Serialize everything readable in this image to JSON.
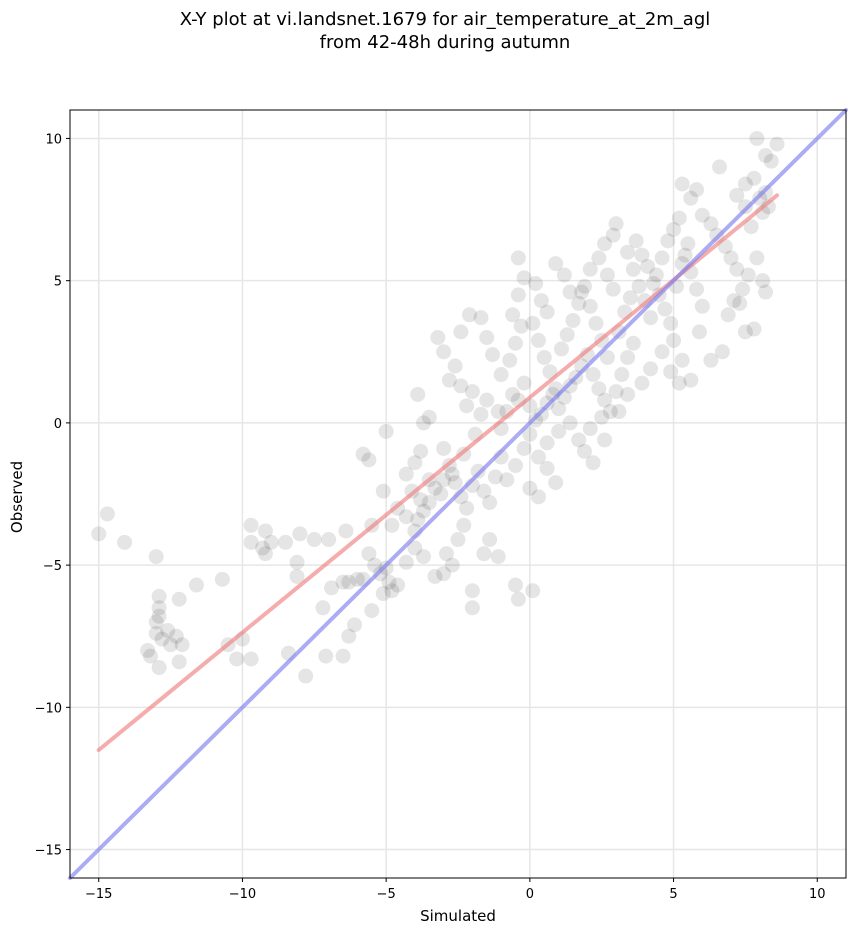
{
  "chart_data": {
    "type": "scatter",
    "title": "X-Y plot at vi.landsnet.1679 for air_temperature_at_2m_agl",
    "subtitle": "from 42-48h during autumn",
    "xlabel": "Simulated",
    "ylabel": "Observed",
    "xlim": [
      -16,
      11
    ],
    "ylim": [
      -16,
      11
    ],
    "xticks": [
      -15,
      -10,
      -5,
      0,
      5,
      10
    ],
    "yticks": [
      -15,
      -10,
      -5,
      0,
      5,
      10
    ],
    "xtick_labels": [
      "−15",
      "−10",
      "−5",
      "0",
      "5",
      "10"
    ],
    "ytick_labels": [
      "−15",
      "−10",
      "−5",
      "0",
      "5",
      "10"
    ],
    "grid": true,
    "colors": {
      "points": "#000000",
      "regression": "#f08080",
      "identity": "#8080f0"
    },
    "series": [
      {
        "kind": "points",
        "points": [
          [
            -15.0,
            -3.9
          ],
          [
            -14.7,
            -3.2
          ],
          [
            -14.1,
            -4.2
          ],
          [
            -13.0,
            -4.7
          ],
          [
            -12.9,
            -6.1
          ],
          [
            -12.9,
            -6.5
          ],
          [
            -12.9,
            -6.8
          ],
          [
            -13.0,
            -7.0
          ],
          [
            -13.0,
            -7.4
          ],
          [
            -12.8,
            -7.6
          ],
          [
            -12.6,
            -7.3
          ],
          [
            -12.5,
            -7.8
          ],
          [
            -13.3,
            -8.0
          ],
          [
            -13.2,
            -8.2
          ],
          [
            -12.9,
            -8.6
          ],
          [
            -12.3,
            -7.5
          ],
          [
            -12.1,
            -7.8
          ],
          [
            -12.2,
            -8.4
          ],
          [
            -11.6,
            -5.7
          ],
          [
            -12.2,
            -6.2
          ],
          [
            -10.7,
            -5.5
          ],
          [
            -10.5,
            -7.8
          ],
          [
            -10.2,
            -8.3
          ],
          [
            -9.7,
            -8.3
          ],
          [
            -10.0,
            -7.6
          ],
          [
            -9.7,
            -3.6
          ],
          [
            -9.7,
            -4.2
          ],
          [
            -9.3,
            -4.4
          ],
          [
            -9.2,
            -4.6
          ],
          [
            -9.0,
            -4.2
          ],
          [
            -8.5,
            -4.2
          ],
          [
            -9.2,
            -3.8
          ],
          [
            -8.1,
            -4.9
          ],
          [
            -8.1,
            -5.4
          ],
          [
            -7.5,
            -4.1
          ],
          [
            -7.0,
            -4.1
          ],
          [
            -8.0,
            -3.9
          ],
          [
            -8.4,
            -8.1
          ],
          [
            -7.8,
            -8.9
          ],
          [
            -7.1,
            -8.2
          ],
          [
            -6.5,
            -8.2
          ],
          [
            -7.2,
            -6.5
          ],
          [
            -6.9,
            -5.8
          ],
          [
            -6.5,
            -5.6
          ],
          [
            -6.3,
            -5.6
          ],
          [
            -6.1,
            -7.1
          ],
          [
            -6.3,
            -7.5
          ],
          [
            -6.4,
            -3.8
          ],
          [
            -6.0,
            -5.5
          ],
          [
            -5.8,
            -5.5
          ],
          [
            -5.5,
            -6.6
          ],
          [
            -5.5,
            -3.6
          ],
          [
            -5.8,
            -1.1
          ],
          [
            -5.6,
            -1.3
          ],
          [
            -5.1,
            -2.4
          ],
          [
            -5.0,
            -0.3
          ],
          [
            -5.6,
            -4.6
          ],
          [
            -5.4,
            -5.0
          ],
          [
            -5.2,
            -5.3
          ],
          [
            -5.0,
            -5.1
          ],
          [
            -4.9,
            -5.6
          ],
          [
            -4.8,
            -5.9
          ],
          [
            -4.6,
            -5.7
          ],
          [
            -4.3,
            -4.9
          ],
          [
            -4.0,
            -4.4
          ],
          [
            -3.7,
            -4.7
          ],
          [
            -5.1,
            -6.0
          ],
          [
            -4.8,
            -3.6
          ],
          [
            -4.6,
            -3.0
          ],
          [
            -4.3,
            -3.3
          ],
          [
            -4.0,
            -3.8
          ],
          [
            -3.9,
            -3.4
          ],
          [
            -3.7,
            -3.1
          ],
          [
            -3.5,
            -2.8
          ],
          [
            -3.3,
            -2.3
          ],
          [
            -3.0,
            -2.0
          ],
          [
            -4.3,
            -1.8
          ],
          [
            -4.1,
            -2.4
          ],
          [
            -4.0,
            -1.4
          ],
          [
            -3.8,
            -1.0
          ],
          [
            -3.7,
            0.0
          ],
          [
            -3.5,
            0.2
          ],
          [
            -3.9,
            1.0
          ],
          [
            -3.2,
            3.0
          ],
          [
            -3.0,
            2.5
          ],
          [
            -2.8,
            1.5
          ],
          [
            -2.6,
            2.0
          ],
          [
            -2.4,
            1.3
          ],
          [
            -2.2,
            0.6
          ],
          [
            -2.4,
            3.2
          ],
          [
            -2.1,
            3.8
          ],
          [
            -1.7,
            3.7
          ],
          [
            -1.5,
            3.0
          ],
          [
            -1.3,
            2.4
          ],
          [
            -3.0,
            -0.9
          ],
          [
            -2.8,
            -1.5
          ],
          [
            -2.6,
            -2.1
          ],
          [
            -2.4,
            -2.6
          ],
          [
            -2.2,
            -3.0
          ],
          [
            -2.0,
            -2.2
          ],
          [
            -1.8,
            -1.7
          ],
          [
            -1.6,
            -2.4
          ],
          [
            -1.4,
            -2.8
          ],
          [
            -1.2,
            -1.9
          ],
          [
            -1.0,
            -1.2
          ],
          [
            -3.3,
            -5.4
          ],
          [
            -3.0,
            -5.3
          ],
          [
            -2.7,
            -5.0
          ],
          [
            -2.9,
            -4.6
          ],
          [
            -2.5,
            -4.1
          ],
          [
            -2.3,
            -3.6
          ],
          [
            -2.0,
            -6.5
          ],
          [
            -2.0,
            -5.9
          ],
          [
            -1.6,
            -4.6
          ],
          [
            -1.4,
            -4.1
          ],
          [
            -1.1,
            -4.7
          ],
          [
            -0.5,
            -5.7
          ],
          [
            -0.4,
            -6.2
          ],
          [
            0.1,
            -5.9
          ],
          [
            -1.0,
            -0.2
          ],
          [
            -0.8,
            0.4
          ],
          [
            -0.6,
            1.0
          ],
          [
            -0.4,
            0.8
          ],
          [
            -0.2,
            1.4
          ],
          [
            0.0,
            0.6
          ],
          [
            -1.0,
            1.7
          ],
          [
            -0.7,
            2.2
          ],
          [
            -0.5,
            2.8
          ],
          [
            -0.3,
            3.4
          ],
          [
            -0.6,
            3.8
          ],
          [
            -0.4,
            4.5
          ],
          [
            -0.2,
            5.1
          ],
          [
            -0.4,
            5.8
          ],
          [
            0.2,
            4.9
          ],
          [
            0.4,
            4.3
          ],
          [
            0.1,
            3.5
          ],
          [
            0.3,
            2.9
          ],
          [
            0.5,
            2.3
          ],
          [
            0.7,
            1.8
          ],
          [
            0.9,
            1.2
          ],
          [
            1.1,
            2.6
          ],
          [
            1.3,
            3.1
          ],
          [
            1.5,
            3.6
          ],
          [
            1.7,
            4.2
          ],
          [
            1.9,
            4.8
          ],
          [
            2.1,
            4.1
          ],
          [
            2.3,
            3.5
          ],
          [
            2.5,
            2.9
          ],
          [
            2.7,
            2.3
          ],
          [
            0.0,
            -0.4
          ],
          [
            0.2,
            0.1
          ],
          [
            0.4,
            0.3
          ],
          [
            0.6,
            0.7
          ],
          [
            0.8,
            1.0
          ],
          [
            1.0,
            0.5
          ],
          [
            1.2,
            0.9
          ],
          [
            1.4,
            1.3
          ],
          [
            1.6,
            1.6
          ],
          [
            1.8,
            2.0
          ],
          [
            2.0,
            2.4
          ],
          [
            2.2,
            1.7
          ],
          [
            2.4,
            1.2
          ],
          [
            2.6,
            0.8
          ],
          [
            2.8,
            0.4
          ],
          [
            3.0,
            1.1
          ],
          [
            3.2,
            1.7
          ],
          [
            3.4,
            2.3
          ],
          [
            3.6,
            2.8
          ],
          [
            0.3,
            -1.2
          ],
          [
            0.6,
            -1.6
          ],
          [
            0.9,
            -2.1
          ],
          [
            0.6,
            -0.7
          ],
          [
            1.0,
            -0.3
          ],
          [
            1.4,
            0.0
          ],
          [
            1.7,
            -0.6
          ],
          [
            2.1,
            -0.2
          ],
          [
            2.5,
            0.2
          ],
          [
            -0.2,
            -0.9
          ],
          [
            -0.5,
            -1.5
          ],
          [
            -0.8,
            -2.0
          ],
          [
            0.0,
            -2.3
          ],
          [
            0.3,
            -2.6
          ],
          [
            1.8,
            4.6
          ],
          [
            2.1,
            5.4
          ],
          [
            2.4,
            5.8
          ],
          [
            2.6,
            6.3
          ],
          [
            2.9,
            6.6
          ],
          [
            3.0,
            7.0
          ],
          [
            3.4,
            6.0
          ],
          [
            3.6,
            5.4
          ],
          [
            3.8,
            4.8
          ],
          [
            4.0,
            4.3
          ],
          [
            4.2,
            3.7
          ],
          [
            4.4,
            5.2
          ],
          [
            4.6,
            5.8
          ],
          [
            4.8,
            6.4
          ],
          [
            5.0,
            6.8
          ],
          [
            5.2,
            7.2
          ],
          [
            5.4,
            5.9
          ],
          [
            5.6,
            5.3
          ],
          [
            5.8,
            4.7
          ],
          [
            6.0,
            4.1
          ],
          [
            5.3,
            8.4
          ],
          [
            5.6,
            7.9
          ],
          [
            5.8,
            8.2
          ],
          [
            6.0,
            7.3
          ],
          [
            6.3,
            7.0
          ],
          [
            6.5,
            6.6
          ],
          [
            6.8,
            6.2
          ],
          [
            7.0,
            5.8
          ],
          [
            7.2,
            5.4
          ],
          [
            5.0,
            2.9
          ],
          [
            5.3,
            2.2
          ],
          [
            5.6,
            1.5
          ],
          [
            5.2,
            1.4
          ],
          [
            5.9,
            3.2
          ],
          [
            6.3,
            2.2
          ],
          [
            6.7,
            2.5
          ],
          [
            6.9,
            3.8
          ],
          [
            7.3,
            4.2
          ],
          [
            7.5,
            3.2
          ],
          [
            7.8,
            3.3
          ],
          [
            6.6,
            9.0
          ],
          [
            7.2,
            8.0
          ],
          [
            7.5,
            8.4
          ],
          [
            7.8,
            8.6
          ],
          [
            8.0,
            7.9
          ],
          [
            8.2,
            8.1
          ],
          [
            7.9,
            10.0
          ],
          [
            8.2,
            9.4
          ],
          [
            8.4,
            9.2
          ],
          [
            8.6,
            9.8
          ],
          [
            8.3,
            7.6
          ],
          [
            8.1,
            7.4
          ],
          [
            7.5,
            7.6
          ],
          [
            7.7,
            6.9
          ],
          [
            7.1,
            4.3
          ],
          [
            7.4,
            4.7
          ],
          [
            7.6,
            5.2
          ],
          [
            7.9,
            5.8
          ],
          [
            8.1,
            5.0
          ],
          [
            8.2,
            4.6
          ],
          [
            3.7,
            6.4
          ],
          [
            3.9,
            5.9
          ],
          [
            4.1,
            5.5
          ],
          [
            4.3,
            4.9
          ],
          [
            4.5,
            4.5
          ],
          [
            4.7,
            4.0
          ],
          [
            4.9,
            3.5
          ],
          [
            5.1,
            4.8
          ],
          [
            5.3,
            5.6
          ],
          [
            5.5,
            6.3
          ],
          [
            3.1,
            3.2
          ],
          [
            3.3,
            3.9
          ],
          [
            3.5,
            4.4
          ],
          [
            2.9,
            4.7
          ],
          [
            2.7,
            5.2
          ],
          [
            1.4,
            4.6
          ],
          [
            1.2,
            5.2
          ],
          [
            0.9,
            5.6
          ],
          [
            0.6,
            3.9
          ],
          [
            -1.1,
            0.4
          ],
          [
            -1.5,
            0.8
          ],
          [
            -1.9,
            -0.4
          ],
          [
            -2.3,
            -1.1
          ],
          [
            -2.7,
            -1.8
          ],
          [
            -3.1,
            -2.5
          ],
          [
            -3.5,
            -2.0
          ],
          [
            -3.8,
            -2.7
          ],
          [
            -2.0,
            1.1
          ],
          [
            -1.7,
            0.3
          ],
          [
            1.9,
            -1.0
          ],
          [
            2.2,
            -1.4
          ],
          [
            2.6,
            -0.6
          ],
          [
            3.1,
            0.4
          ],
          [
            3.4,
            1.0
          ],
          [
            3.9,
            1.4
          ],
          [
            4.2,
            1.9
          ],
          [
            4.6,
            2.5
          ],
          [
            4.9,
            1.8
          ]
        ]
      },
      {
        "kind": "line",
        "role": "regression",
        "points": [
          [
            -15.0,
            -11.5
          ],
          [
            8.6,
            8.0
          ]
        ]
      },
      {
        "kind": "line",
        "role": "identity",
        "points": [
          [
            -16,
            -16
          ],
          [
            11,
            11
          ]
        ]
      }
    ]
  }
}
